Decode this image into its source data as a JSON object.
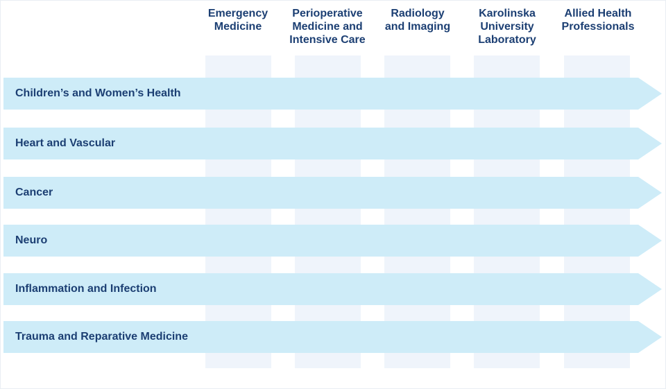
{
  "columns": [
    {
      "label": "Emergency\nMedicine"
    },
    {
      "label": "Perioperative\nMedicine and\nIntensive Care"
    },
    {
      "label": "Radiology\nand Imaging"
    },
    {
      "label": "Karolinska\nUniversity\nLaboratory"
    },
    {
      "label": "Allied Health\nProfessionals"
    }
  ],
  "rows": [
    {
      "label": "Children’s and Women’s Health"
    },
    {
      "label": "Heart and Vascular"
    },
    {
      "label": "Cancer"
    },
    {
      "label": "Neuro"
    },
    {
      "label": "Inflammation and Infection"
    },
    {
      "label": "Trauma and Reparative Medicine"
    }
  ],
  "colors": {
    "row_fill": "#ceecf8",
    "column_fill": "#eff4fb",
    "text": "#1c3f73"
  }
}
